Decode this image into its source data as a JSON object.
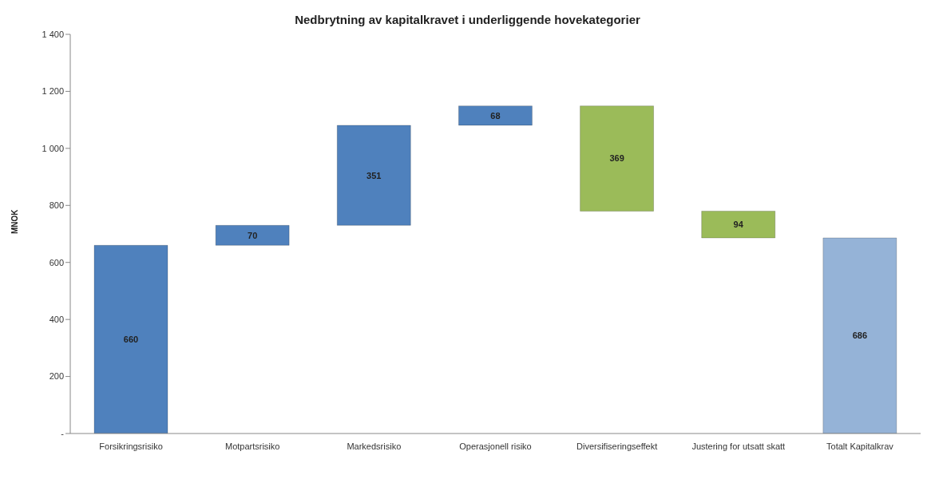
{
  "chart_data": {
    "type": "bar",
    "title": "Nedbrytning av kapitalkravet i underliggende hovekategorier",
    "ylabel": "MNOK",
    "categories": [
      "Forsikringsrisiko",
      "Motpartsrisiko",
      "Markedsrisiko",
      "Operasjonell risiko",
      "Diversifiseringseffekt",
      "Justering for utsatt skatt",
      "Totalt Kapitalkrav"
    ],
    "values": [
      660,
      70,
      351,
      68,
      369,
      94,
      686
    ],
    "base": [
      0,
      660,
      730,
      1081,
      780,
      686,
      0
    ],
    "colors": [
      "#4f81bd",
      "#4f81bd",
      "#4f81bd",
      "#4f81bd",
      "#9bbb59",
      "#9bbb59",
      "#95b3d7"
    ],
    "ylim": [
      0,
      1400
    ],
    "yticks": [
      {
        "value": 0,
        "label": "-"
      },
      200,
      400,
      600,
      800,
      {
        "value": 1000,
        "label": "1 000"
      },
      {
        "value": 1200,
        "label": "1 200"
      },
      {
        "value": 1400,
        "label": "1 400"
      }
    ],
    "grid": false,
    "data_labels": true
  }
}
